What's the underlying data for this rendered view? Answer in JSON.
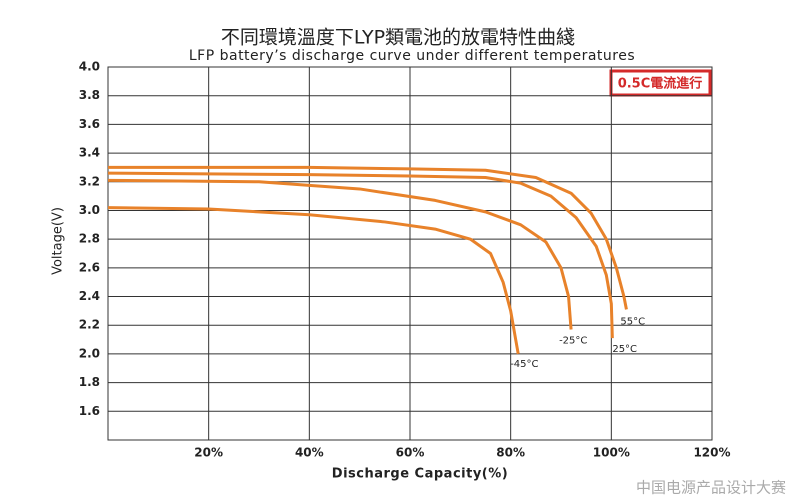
{
  "chart_data": {
    "type": "line",
    "title": "不同環境溫度下LYP類電池的放電特性曲綫",
    "subtitle": "LFP battery’s discharge curve under different temperatures",
    "x_label": "Discharge Capacity(%)",
    "y_label": "Voltage(V)",
    "annotation": "0.5C電流進行",
    "watermark": "中国电源产品设计大赛",
    "xlim": [
      0,
      120
    ],
    "ylim": [
      1.4,
      4.0
    ],
    "xticks": [
      {
        "value": 20,
        "label": "20%"
      },
      {
        "value": 40,
        "label": "40%"
      },
      {
        "value": 60,
        "label": "60%"
      },
      {
        "value": 80,
        "label": "80%"
      },
      {
        "value": 100,
        "label": "100%"
      },
      {
        "value": 120,
        "label": "120%"
      }
    ],
    "yticks": [
      {
        "value": 4,
        "label": "4.0"
      },
      3.8,
      3.6,
      3.4,
      3.2,
      {
        "value": 3,
        "label": "3.0"
      },
      2.8,
      2.6,
      2.4,
      2.2,
      {
        "value": 2,
        "label": "2.0"
      },
      1.8,
      1.6
    ],
    "grid": true,
    "series": [
      {
        "name": "55°C",
        "color": "#e8822a",
        "x": [
          0,
          20,
          40,
          60,
          75,
          85,
          92,
          96,
          99,
          101,
          102.5,
          103
        ],
        "values": [
          3.3,
          3.3,
          3.3,
          3.29,
          3.28,
          3.23,
          3.12,
          2.98,
          2.8,
          2.6,
          2.4,
          2.31
        ]
      },
      {
        "name": "25°C",
        "color": "#e8822a",
        "x": [
          0,
          40,
          60,
          75,
          82,
          88,
          93,
          97,
          99,
          100,
          100.2
        ],
        "values": [
          3.26,
          3.25,
          3.24,
          3.23,
          3.19,
          3.1,
          2.95,
          2.75,
          2.55,
          2.35,
          2.11
        ]
      },
      {
        "name": "-25°C",
        "color": "#e8822a",
        "x": [
          0,
          30,
          50,
          65,
          75,
          82,
          87,
          90,
          91.5,
          92
        ],
        "values": [
          3.21,
          3.2,
          3.15,
          3.07,
          2.99,
          2.9,
          2.78,
          2.6,
          2.4,
          2.17
        ]
      },
      {
        "name": "-45°C",
        "color": "#e8822a",
        "x": [
          0,
          20,
          40,
          55,
          65,
          72,
          76,
          78.5,
          80,
          81,
          81.5
        ],
        "values": [
          3.02,
          3.01,
          2.97,
          2.92,
          2.87,
          2.8,
          2.7,
          2.5,
          2.3,
          2.1,
          2.0
        ]
      }
    ]
  }
}
